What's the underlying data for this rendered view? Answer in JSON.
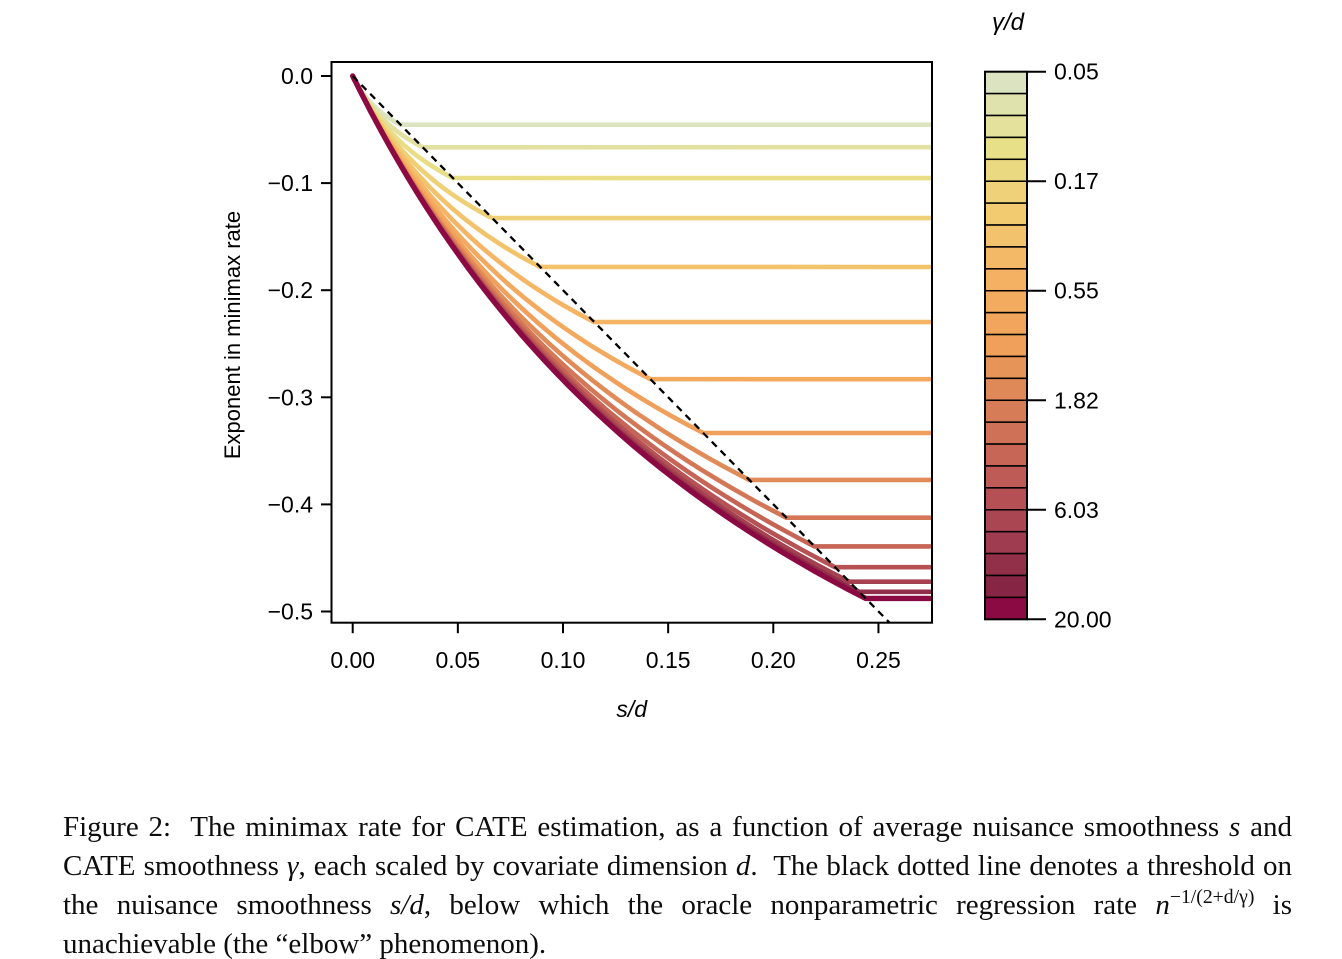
{
  "figure": {
    "caption_runs": [
      {
        "text": "Figure 2:  The minimax rate for CATE estimation, as a function of average nuisance smoothness "
      },
      {
        "text": "s",
        "italic": true
      },
      {
        "text": " and CATE smoothness "
      },
      {
        "text": "γ",
        "italic": true
      },
      {
        "text": ", each scaled by covariate dimension "
      },
      {
        "text": "d",
        "italic": true
      },
      {
        "text": ".  The black dotted line denotes a threshold on the nuisance smoothness "
      },
      {
        "text": "s/d",
        "italic": true
      },
      {
        "text": ", below which the oracle nonparametric regression rate "
      },
      {
        "text": "n",
        "italic": true
      },
      {
        "text": "−1/(2+d/γ)",
        "sup": true
      },
      {
        "text": " is unachievable (the “elbow” phenomenon)."
      }
    ]
  },
  "chart_data": {
    "type": "line",
    "xlabel": "s/d",
    "ylabel": "Exponent in minimax rate",
    "xlim": [
      0,
      0.265
    ],
    "ylim": [
      -0.5,
      0
    ],
    "grid": false,
    "x_ticks": [
      0,
      0.05,
      0.1,
      0.15,
      0.2,
      0.25
    ],
    "x_tick_labels": [
      "0.00",
      "0.05",
      "0.10",
      "0.15",
      "0.20",
      "0.25"
    ],
    "y_ticks": [
      0,
      -0.1,
      -0.2,
      -0.3,
      -0.4,
      -0.5
    ],
    "y_tick_labels": [
      "0.0",
      "−0.1",
      "−0.2",
      "−0.3",
      "−0.4",
      "−0.5"
    ],
    "series_parameter": "gamma/d, 15 values log-spaced from 0.05 to 20",
    "curve_formula_low_smoothness": "exponent(s/d) = -1 / (1 + 1/(4 s/d) + 1/(2 gamma/d)) for s/d below elbow",
    "curve_formula_oracle": "exponent = -(gamma/d)/(2 gamma/d + 1) = -1/(2 + d/gamma) for s/d above elbow",
    "elbow_locus": "exponent = -2 (s/d)",
    "curves": [
      {
        "gamma_over_d": 0.05,
        "oracle_exponent": -0.0455,
        "elbow_s_over_d": 0.0227
      },
      {
        "gamma_over_d": 0.0767,
        "oracle_exponent": -0.0665,
        "elbow_s_over_d": 0.0333
      },
      {
        "gamma_over_d": 0.1177,
        "oracle_exponent": -0.0953,
        "elbow_s_over_d": 0.0476
      },
      {
        "gamma_over_d": 0.1806,
        "oracle_exponent": -0.1327,
        "elbow_s_over_d": 0.0663
      },
      {
        "gamma_over_d": 0.2771,
        "oracle_exponent": -0.1783,
        "elbow_s_over_d": 0.0891
      },
      {
        "gamma_over_d": 0.4252,
        "oracle_exponent": -0.2298,
        "elbow_s_over_d": 0.1149
      },
      {
        "gamma_over_d": 0.6524,
        "oracle_exponent": -0.2831,
        "elbow_s_over_d": 0.1415
      },
      {
        "gamma_over_d": 1.0,
        "oracle_exponent": -0.3333,
        "elbow_s_over_d": 0.1667
      },
      {
        "gamma_over_d": 1.5343,
        "oracle_exponent": -0.3771,
        "elbow_s_over_d": 0.1886
      },
      {
        "gamma_over_d": 2.3543,
        "oracle_exponent": -0.4124,
        "elbow_s_over_d": 0.2062
      },
      {
        "gamma_over_d": 3.6126,
        "oracle_exponent": -0.4392,
        "elbow_s_over_d": 0.2196
      },
      {
        "gamma_over_d": 5.5431,
        "oracle_exponent": -0.4586,
        "elbow_s_over_d": 0.2293
      },
      {
        "gamma_over_d": 8.5055,
        "oracle_exponent": -0.4722,
        "elbow_s_over_d": 0.2361
      },
      {
        "gamma_over_d": 13.051,
        "oracle_exponent": -0.4816,
        "elbow_s_over_d": 0.2408
      },
      {
        "gamma_over_d": 20.0,
        "oracle_exponent": -0.4878,
        "elbow_s_over_d": 0.2439
      }
    ],
    "dashed_line": {
      "description": "threshold on nuisance smoothness (elbow locus)",
      "equation": "exponent = -2 (s/d)",
      "from": [
        0,
        0
      ],
      "to": [
        0.2553,
        -0.5105
      ],
      "color": "#000000",
      "style": "dashed"
    },
    "colorbar": {
      "title": "γ/d",
      "scale": "log",
      "min": 0.05,
      "max": 20,
      "n_segments": 25,
      "tick_labels": [
        "0.05",
        "0.17",
        "0.55",
        "1.82",
        "6.03",
        "20.00"
      ],
      "light_end_at_top": true
    },
    "palette_stops": [
      [
        0.0,
        "#dce3c1"
      ],
      [
        0.125,
        "#e7e089"
      ],
      [
        0.25,
        "#f2ca70"
      ],
      [
        0.375,
        "#f5b163"
      ],
      [
        0.5,
        "#f0a05a"
      ],
      [
        0.625,
        "#d67c57"
      ],
      [
        0.75,
        "#bf5b56"
      ],
      [
        0.875,
        "#a03c4f"
      ],
      [
        0.958,
        "#872544"
      ],
      [
        1.0,
        "#8c0a43"
      ]
    ],
    "axis_color": "#000000",
    "background_color": "#ffffff"
  }
}
